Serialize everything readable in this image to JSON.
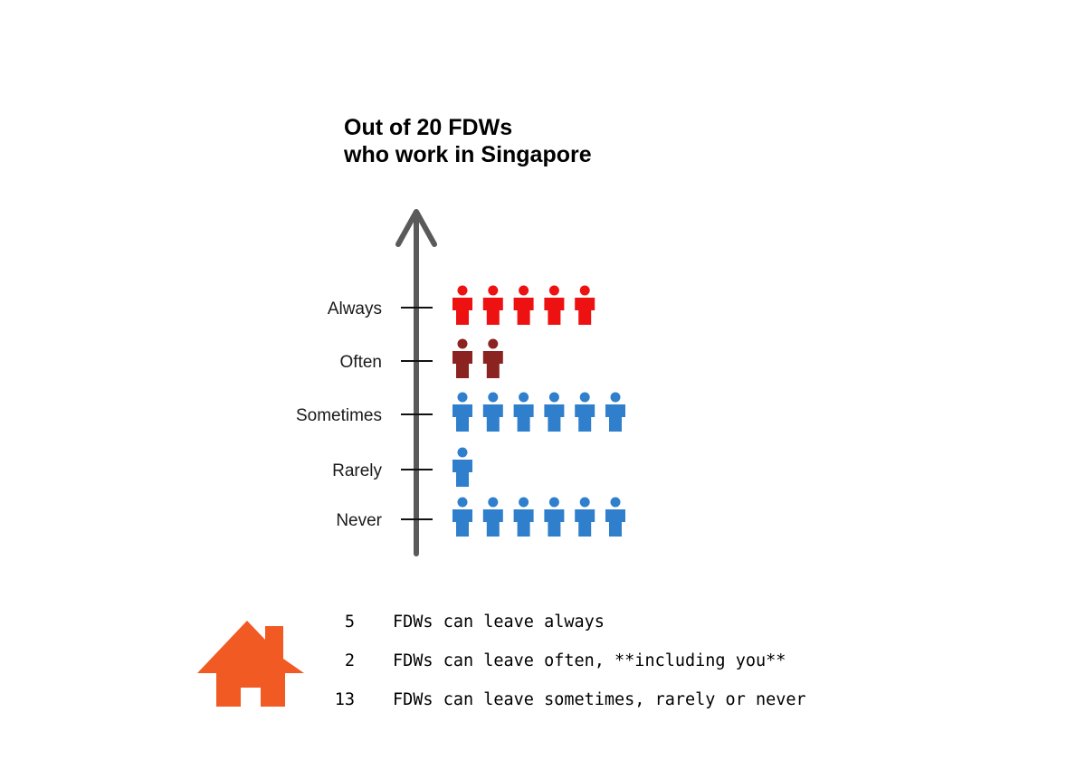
{
  "title_lines": [
    "Out of 20 FDWs",
    "who work in Singapore"
  ],
  "colors": {
    "axis": "#5a5a5a",
    "always": "#ee1111",
    "often": "#8b2320",
    "other": "#2f7fcc",
    "house": "#f15a22"
  },
  "icons": {
    "person": "person-icon",
    "house": "house-icon"
  },
  "chart_data": {
    "type": "pictogram",
    "unit": "FDWs",
    "categories": [
      "Always",
      "Often",
      "Sometimes",
      "Rarely",
      "Never"
    ],
    "values": [
      5,
      2,
      6,
      1,
      6
    ],
    "category_colors": [
      "#ee1111",
      "#8b2320",
      "#2f7fcc",
      "#2f7fcc",
      "#2f7fcc"
    ],
    "total": 20
  },
  "summary": [
    {
      "number": "5",
      "text": "FDWs can leave always"
    },
    {
      "number": "2",
      "text": "FDWs can leave often, **including you**"
    },
    {
      "number": "13",
      "text": "FDWs can leave sometimes, rarely or never"
    }
  ]
}
